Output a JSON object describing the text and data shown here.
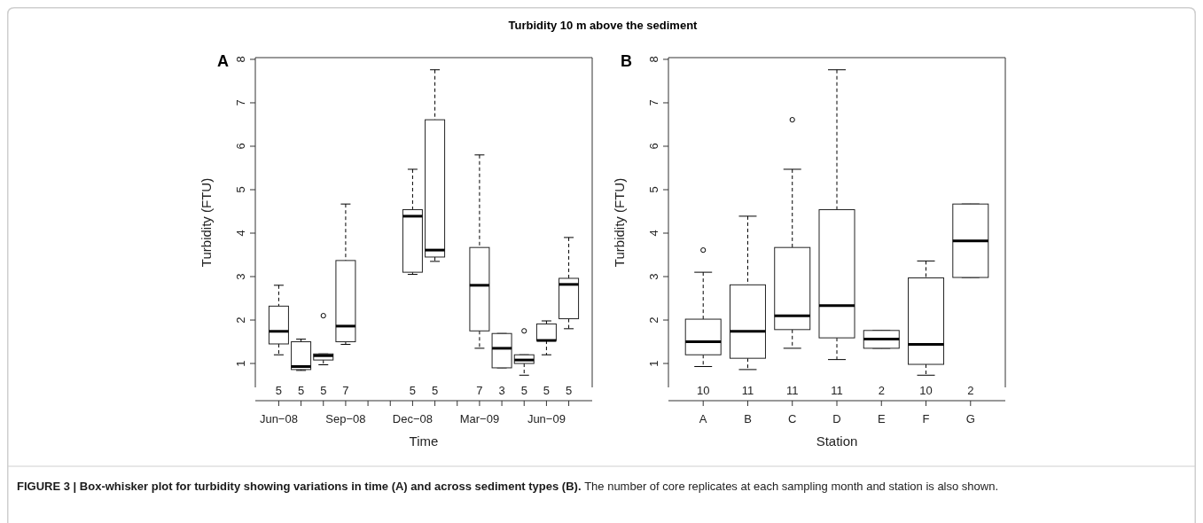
{
  "chart_data": [
    {
      "type": "box",
      "title": "Turbidity 10 m above the sediment",
      "xlabel": "Time",
      "ylabel": "Turbidity (FTU)",
      "annotations": [
        "A"
      ],
      "categories": [
        "Jun−08",
        null,
        null,
        "Sep−08",
        null,
        null,
        "Dec−08",
        null,
        null,
        "Mar−09",
        null,
        null,
        "Jun−09",
        null
      ],
      "boxes": [
        {
          "low": 1.2,
          "q1": 1.45,
          "median": 1.74,
          "q3": 2.32,
          "high": 2.8
        },
        {
          "low": 0.84,
          "q1": 0.86,
          "median": 0.93,
          "q3": 1.5,
          "high": 1.56
        },
        {
          "low": 0.97,
          "q1": 1.08,
          "median": 1.18,
          "q3": 1.22,
          "high": 1.22,
          "outliers": [
            2.1
          ]
        },
        {
          "low": 1.44,
          "q1": 1.5,
          "median": 1.86,
          "q3": 3.37,
          "high": 4.67
        },
        null,
        null,
        {
          "low": 3.05,
          "q1": 3.1,
          "median": 4.39,
          "q3": 4.54,
          "high": 5.47
        },
        {
          "low": 3.35,
          "q1": 3.45,
          "median": 3.61,
          "q3": 6.61,
          "high": 7.76
        },
        null,
        {
          "low": 1.35,
          "q1": 1.75,
          "median": 2.8,
          "q3": 3.67,
          "high": 5.8
        },
        {
          "low": 0.9,
          "q1": 0.9,
          "median": 1.35,
          "q3": 1.69,
          "high": 1.69
        },
        {
          "low": 0.73,
          "q1": 1.0,
          "median": 1.08,
          "q3": 1.2,
          "high": 1.2,
          "outliers": [
            1.75
          ]
        },
        {
          "low": 1.2,
          "q1": 1.53,
          "median": 1.53,
          "q3": 1.91,
          "high": 1.98
        },
        {
          "low": 1.8,
          "q1": 2.03,
          "median": 2.82,
          "q3": 2.96,
          "high": 3.9
        }
      ],
      "value_labels": [
        "5",
        "5",
        "5",
        "7",
        null,
        null,
        "5",
        "5",
        null,
        "7",
        "3",
        "5",
        "5",
        "5"
      ],
      "ylim": [
        0.45,
        8.04
      ],
      "yticks": [
        1,
        2,
        3,
        4,
        5,
        6,
        7,
        8
      ],
      "grid": false
    },
    {
      "type": "box",
      "xlabel": "Station",
      "ylabel": "Turbidity (FTU)",
      "annotations": [
        "B",
        "FIGURE 3 | Box-whisker plot for turbidity showing variations in time (A) and across sediment types (B).",
        "The number of core replicates at each sampling month and station is also shown."
      ],
      "categories": [
        "A",
        "B",
        "C",
        "D",
        "E",
        "F",
        "G"
      ],
      "boxes": [
        {
          "low": 0.93,
          "q1": 1.2,
          "median": 1.5,
          "q3": 2.02,
          "high": 3.1,
          "outliers": [
            3.61
          ]
        },
        {
          "low": 0.86,
          "q1": 1.12,
          "median": 1.74,
          "q3": 2.81,
          "high": 4.39
        },
        {
          "low": 1.35,
          "q1": 1.78,
          "median": 2.1,
          "q3": 3.67,
          "high": 5.47,
          "outliers": [
            6.61
          ]
        },
        {
          "low": 1.09,
          "q1": 1.59,
          "median": 2.33,
          "q3": 4.54,
          "high": 7.76
        },
        {
          "low": 1.35,
          "q1": 1.35,
          "median": 1.56,
          "q3": 1.76,
          "high": 1.76
        },
        {
          "low": 0.73,
          "q1": 0.98,
          "median": 1.44,
          "q3": 2.97,
          "high": 3.36
        },
        {
          "low": 2.98,
          "q1": 2.98,
          "median": 3.82,
          "q3": 4.67,
          "high": 4.67
        }
      ],
      "value_labels": [
        "10",
        "11",
        "11",
        "11",
        "2",
        "10",
        "2"
      ],
      "ylim": [
        0.45,
        8.04
      ],
      "yticks": [
        1,
        2,
        3,
        4,
        5,
        6,
        7,
        8
      ],
      "grid": false
    }
  ]
}
